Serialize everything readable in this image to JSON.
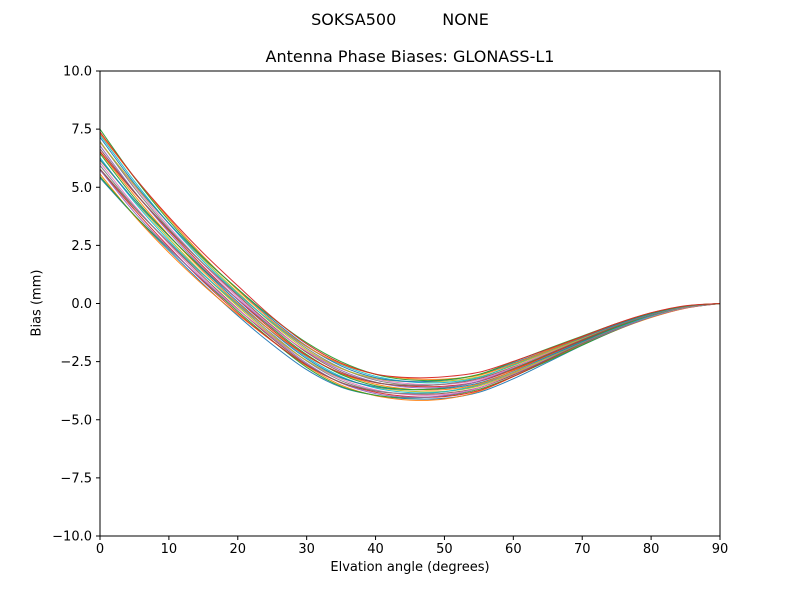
{
  "figure": {
    "suptitle_left": "SOKSA500",
    "suptitle_right": "NONE",
    "title": "Antenna Phase Biases: GLONASS-L1",
    "xlabel": "Elvation angle (degrees)",
    "ylabel": "Bias (mm)"
  },
  "chart_data": {
    "type": "line",
    "title": "Antenna Phase Biases: GLONASS-L1",
    "suptitle": "SOKSA500        NONE",
    "xlabel": "Elvation angle (degrees)",
    "ylabel": "Bias (mm)",
    "xlim": [
      0,
      90
    ],
    "ylim": [
      -10,
      10
    ],
    "xticks": [
      0,
      10,
      20,
      30,
      40,
      50,
      60,
      70,
      80,
      90
    ],
    "yticks": [
      -10,
      -7.5,
      -5,
      -2.5,
      0,
      2.5,
      5,
      7.5,
      10
    ],
    "grid": false,
    "legend": "none",
    "description": "Band of ~24 overlapping per-satellite GLONASS-L1 antenna phase bias curves; individual curves are indistinguishable, so the band is described by top and bottom envelopes. All curves converge to 0.0 mm at 90 degrees elevation.",
    "x": [
      0,
      5,
      10,
      15,
      20,
      25,
      30,
      35,
      40,
      45,
      50,
      55,
      60,
      65,
      70,
      75,
      80,
      85,
      90
    ],
    "envelope_top": [
      7.5,
      5.5,
      3.7,
      2.1,
      0.7,
      -0.6,
      -1.7,
      -2.5,
      -3.0,
      -3.2,
      -3.2,
      -3.0,
      -2.5,
      -1.95,
      -1.4,
      -0.85,
      -0.4,
      -0.1,
      0.0
    ],
    "envelope_bottom": [
      5.4,
      3.7,
      2.2,
      0.8,
      -0.5,
      -1.7,
      -2.8,
      -3.6,
      -4.0,
      -4.15,
      -4.1,
      -3.8,
      -3.2,
      -2.5,
      -1.8,
      -1.15,
      -0.6,
      -0.2,
      0.0
    ],
    "series_count": 24,
    "jitter_amplitude": 0.12,
    "line_width": 1.0,
    "colors": [
      "#1f77b4",
      "#ff7f0e",
      "#2ca02c",
      "#d62728",
      "#9467bd",
      "#8c564b",
      "#e377c2",
      "#7f7f7f",
      "#bcbd22",
      "#17becf"
    ],
    "axes_color": "#000000",
    "background_color": "#ffffff"
  }
}
